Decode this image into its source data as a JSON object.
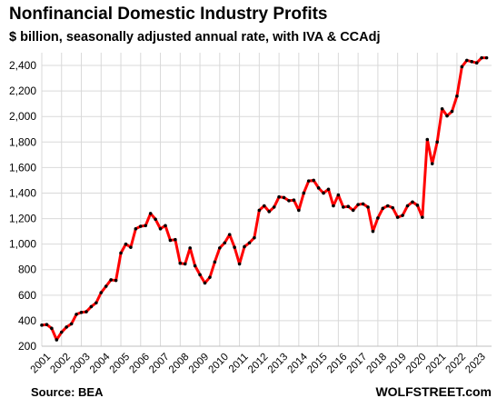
{
  "chart_data": {
    "type": "line",
    "title": "Nonfinancial Domestic Industry Profits",
    "subtitle": "$ billion, seasonally adjusted annual rate, with IVA & CCAdj",
    "source": "Source: BEA",
    "brand": "WOLFSTREET.com",
    "ylim": [
      200,
      2500
    ],
    "yticks": [
      200,
      400,
      600,
      800,
      1000,
      1200,
      1400,
      1600,
      1800,
      2000,
      2200,
      2400
    ],
    "ytick_labels": [
      "200",
      "400",
      "600",
      "800",
      "1,000",
      "1,200",
      "1,400",
      "1,600",
      "1,800",
      "2,000",
      "2,200",
      "2,400"
    ],
    "xlim": [
      2001.0,
      2023.75
    ],
    "xticks": [
      2001,
      2002,
      2003,
      2004,
      2005,
      2006,
      2007,
      2008,
      2009,
      2010,
      2011,
      2012,
      2013,
      2014,
      2015,
      2016,
      2017,
      2018,
      2019,
      2020,
      2021,
      2022,
      2023
    ],
    "grid": true,
    "line_color": "#ff0000",
    "marker_color": "#000000",
    "series": [
      {
        "x": [
          2001.0,
          2001.25,
          2001.5,
          2001.75,
          2002.0,
          2002.25,
          2002.5,
          2002.75,
          2003.0,
          2003.25,
          2003.5,
          2003.75,
          2004.0,
          2004.25,
          2004.5,
          2004.75,
          2005.0,
          2005.25,
          2005.5,
          2005.75,
          2006.0,
          2006.25,
          2006.5,
          2006.75,
          2007.0,
          2007.25,
          2007.5,
          2007.75,
          2008.0,
          2008.25,
          2008.5,
          2008.75,
          2009.0,
          2009.25,
          2009.5,
          2009.75,
          2010.0,
          2010.25,
          2010.5,
          2010.75,
          2011.0,
          2011.25,
          2011.5,
          2011.75,
          2012.0,
          2012.25,
          2012.5,
          2012.75,
          2013.0,
          2013.25,
          2013.5,
          2013.75,
          2014.0,
          2014.25,
          2014.5,
          2014.75,
          2015.0,
          2015.25,
          2015.5,
          2015.75,
          2016.0,
          2016.25,
          2016.5,
          2016.75,
          2017.0,
          2017.25,
          2017.5,
          2017.75,
          2018.0,
          2018.25,
          2018.5,
          2018.75,
          2019.0,
          2019.25,
          2019.5,
          2019.75,
          2020.0,
          2020.25,
          2020.5,
          2020.75,
          2021.0,
          2021.25,
          2021.5,
          2021.75,
          2022.0,
          2022.25,
          2022.5,
          2022.75,
          2023.0,
          2023.25,
          2023.5
        ],
        "values": [
          365,
          370,
          340,
          250,
          310,
          350,
          375,
          450,
          465,
          470,
          510,
          540,
          620,
          670,
          720,
          715,
          930,
          1000,
          975,
          1120,
          1140,
          1145,
          1240,
          1195,
          1120,
          1145,
          1030,
          1035,
          850,
          845,
          970,
          830,
          760,
          695,
          740,
          860,
          970,
          1010,
          1075,
          975,
          845,
          980,
          1010,
          1050,
          1265,
          1300,
          1255,
          1290,
          1370,
          1365,
          1340,
          1345,
          1265,
          1400,
          1495,
          1500,
          1440,
          1400,
          1430,
          1300,
          1385,
          1290,
          1295,
          1265,
          1310,
          1315,
          1290,
          1100,
          1205,
          1280,
          1300,
          1285,
          1210,
          1225,
          1300,
          1330,
          1305,
          1210,
          1820,
          1630,
          1800,
          2060,
          2005,
          2040,
          2160,
          2390,
          2440,
          2430,
          2420,
          2460,
          2460
        ]
      }
    ]
  }
}
